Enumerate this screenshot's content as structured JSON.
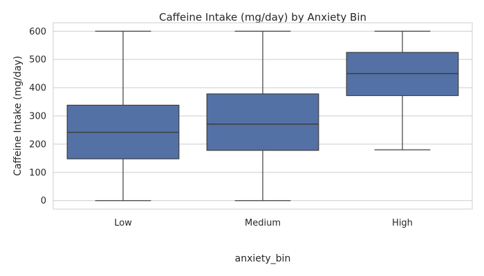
{
  "chart_data": {
    "type": "box",
    "title": "Caffeine Intake (mg/day) by Anxiety Bin",
    "xlabel": "anxiety_bin",
    "ylabel": "Caffeine Intake (mg/day)",
    "ylim": [
      -30,
      630
    ],
    "yticks": [
      0,
      100,
      200,
      300,
      400,
      500,
      600
    ],
    "grid": true,
    "box_color": "#5471a6",
    "line_color": "#3d3d3d",
    "categories": [
      "Low",
      "Medium",
      "High"
    ],
    "boxes": [
      {
        "category": "Low",
        "min": 0,
        "q1": 148,
        "median": 242,
        "q3": 338,
        "max": 600
      },
      {
        "category": "Medium",
        "min": 0,
        "q1": 178,
        "median": 271,
        "q3": 378,
        "max": 600
      },
      {
        "category": "High",
        "min": 180,
        "q1": 372,
        "median": 450,
        "q3": 525,
        "max": 600
      }
    ]
  }
}
